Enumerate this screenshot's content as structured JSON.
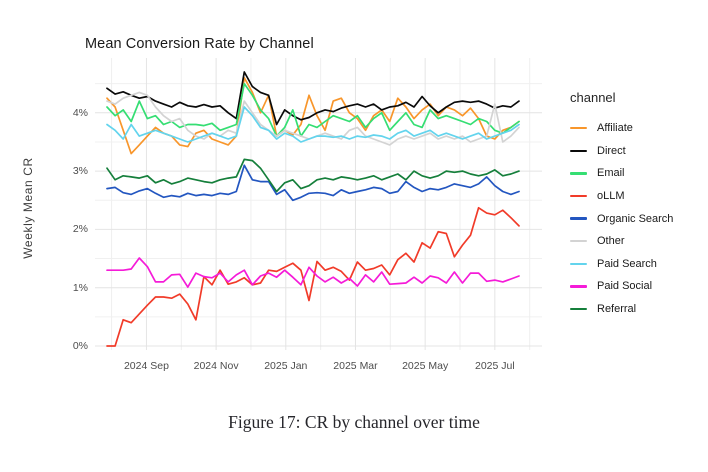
{
  "figure": {
    "caption": "Figure 17: CR by channel over time"
  },
  "chart_data": {
    "type": "line",
    "title": "Mean Conversion Rate by Channel",
    "xlabel": "",
    "ylabel": "Weekly Mean CR",
    "x_unit": "week",
    "x_range_weeks": 52,
    "x_tick_labels": [
      "2024 Sep",
      "2024 Nov",
      "2025 Jan",
      "2025 Mar",
      "2025 May",
      "2025 Jul"
    ],
    "y_tick_labels": [
      "0%",
      "1%",
      "2%",
      "3%",
      "4%"
    ],
    "y_tick_values": [
      0,
      1,
      2,
      3,
      4
    ],
    "ylim": [
      0,
      4.94
    ],
    "grid": true,
    "legend_title": "channel",
    "legend_position": "right",
    "series": [
      {
        "name": "Affiliate",
        "color": "#F8962B",
        "values": [
          4.25,
          4.1,
          3.7,
          3.3,
          3.45,
          3.6,
          3.75,
          3.65,
          3.6,
          3.45,
          3.42,
          3.65,
          3.7,
          3.55,
          3.5,
          3.45,
          3.6,
          4.6,
          4.35,
          4.0,
          4.3,
          3.6,
          3.7,
          3.62,
          3.8,
          4.3,
          3.95,
          3.7,
          4.2,
          4.25,
          4.0,
          3.9,
          3.7,
          3.95,
          4.05,
          3.85,
          4.25,
          4.1,
          3.9,
          4.05,
          4.15,
          3.95,
          4.1,
          4.05,
          3.95,
          4.08,
          3.9,
          3.6,
          3.55,
          3.7,
          3.75,
          3.85
        ]
      },
      {
        "name": "Direct",
        "color": "#0A0A0A",
        "values": [
          4.42,
          4.32,
          4.36,
          4.3,
          4.25,
          4.28,
          4.2,
          4.15,
          4.1,
          4.18,
          4.12,
          4.1,
          4.14,
          4.1,
          4.12,
          4.0,
          3.9,
          4.7,
          4.45,
          4.35,
          4.3,
          3.8,
          4.05,
          3.95,
          3.88,
          3.92,
          4.0,
          4.05,
          4.02,
          4.08,
          4.12,
          4.15,
          4.1,
          4.15,
          4.05,
          4.1,
          4.12,
          4.18,
          4.1,
          4.28,
          4.12,
          4.0,
          4.1,
          4.18,
          4.2,
          4.18,
          4.2,
          4.15,
          4.08,
          4.12,
          4.1,
          4.2
        ]
      },
      {
        "name": "Email",
        "color": "#35DE73",
        "values": [
          4.1,
          3.95,
          4.05,
          3.85,
          4.2,
          3.9,
          3.95,
          3.8,
          3.85,
          3.75,
          3.8,
          3.8,
          3.78,
          3.82,
          3.7,
          3.75,
          3.8,
          4.5,
          4.3,
          4.05,
          3.9,
          3.6,
          3.75,
          4.05,
          3.6,
          3.8,
          3.75,
          3.85,
          3.95,
          3.9,
          3.85,
          3.95,
          3.75,
          3.9,
          4.0,
          3.7,
          3.85,
          4.0,
          3.8,
          3.75,
          4.05,
          3.9,
          3.95,
          3.9,
          3.85,
          3.8,
          3.9,
          3.85,
          3.7,
          3.65,
          3.75,
          3.85
        ]
      },
      {
        "name": "oLLM",
        "color": "#F13B29",
        "values": [
          0.0,
          0.0,
          0.45,
          0.4,
          0.55,
          0.7,
          0.84,
          0.84,
          0.82,
          0.89,
          0.72,
          0.45,
          1.19,
          1.05,
          1.3,
          1.06,
          1.1,
          1.17,
          1.05,
          1.08,
          1.3,
          1.28,
          1.35,
          1.42,
          1.3,
          0.78,
          1.45,
          1.3,
          1.35,
          1.28,
          1.13,
          1.44,
          1.3,
          1.33,
          1.39,
          1.22,
          1.48,
          1.59,
          1.44,
          1.77,
          1.68,
          1.96,
          1.93,
          1.53,
          1.73,
          1.9,
          2.37,
          2.28,
          2.25,
          2.33,
          2.2,
          2.06
        ]
      },
      {
        "name": "Organic Search",
        "color": "#2356C0",
        "values": [
          2.7,
          2.72,
          2.63,
          2.6,
          2.66,
          2.7,
          2.62,
          2.55,
          2.58,
          2.56,
          2.62,
          2.58,
          2.6,
          2.58,
          2.62,
          2.6,
          2.65,
          3.1,
          2.85,
          2.82,
          2.82,
          2.6,
          2.68,
          2.5,
          2.55,
          2.62,
          2.63,
          2.62,
          2.58,
          2.68,
          2.62,
          2.65,
          2.68,
          2.72,
          2.7,
          2.62,
          2.65,
          2.82,
          2.72,
          2.65,
          2.7,
          2.68,
          2.72,
          2.78,
          2.75,
          2.72,
          2.78,
          2.9,
          2.75,
          2.65,
          2.6,
          2.65
        ]
      },
      {
        "name": "Other",
        "color": "#D3D3D3",
        "values": [
          4.2,
          4.15,
          4.25,
          4.3,
          4.35,
          4.3,
          4.1,
          3.95,
          3.85,
          3.9,
          3.7,
          3.6,
          3.55,
          3.65,
          3.6,
          3.7,
          3.65,
          4.2,
          4.0,
          3.8,
          3.7,
          3.6,
          3.7,
          3.65,
          3.6,
          3.55,
          3.6,
          3.65,
          3.6,
          3.55,
          3.7,
          3.75,
          3.6,
          3.55,
          3.5,
          3.45,
          3.55,
          3.6,
          3.55,
          3.6,
          3.65,
          3.55,
          3.6,
          3.55,
          3.6,
          3.5,
          3.55,
          3.6,
          4.15,
          3.5,
          3.6,
          3.75
        ]
      },
      {
        "name": "Paid Search",
        "color": "#63D4ED",
        "values": [
          3.8,
          3.7,
          3.55,
          3.8,
          3.6,
          3.65,
          3.7,
          3.65,
          3.6,
          3.55,
          3.5,
          3.55,
          3.6,
          3.65,
          3.6,
          3.55,
          3.6,
          4.1,
          3.95,
          3.75,
          3.7,
          3.55,
          3.65,
          3.6,
          3.5,
          3.55,
          3.6,
          3.6,
          3.58,
          3.6,
          3.55,
          3.6,
          3.58,
          3.62,
          3.6,
          3.55,
          3.65,
          3.7,
          3.6,
          3.65,
          3.7,
          3.6,
          3.65,
          3.6,
          3.55,
          3.6,
          3.65,
          3.55,
          3.6,
          3.65,
          3.7,
          3.8
        ]
      },
      {
        "name": "Paid Social",
        "color": "#F51BD8",
        "values": [
          1.3,
          1.3,
          1.3,
          1.32,
          1.51,
          1.36,
          1.1,
          1.1,
          1.22,
          1.23,
          1.01,
          1.25,
          1.19,
          1.17,
          1.25,
          1.1,
          1.22,
          1.3,
          1.05,
          1.2,
          1.25,
          1.18,
          1.3,
          1.18,
          1.05,
          1.35,
          1.2,
          1.1,
          1.18,
          1.08,
          1.16,
          1.03,
          1.22,
          1.1,
          1.27,
          1.06,
          1.07,
          1.08,
          1.18,
          1.08,
          1.2,
          1.17,
          1.08,
          1.27,
          1.08,
          1.25,
          1.25,
          1.11,
          1.13,
          1.1,
          1.15,
          1.2
        ]
      },
      {
        "name": "Referral",
        "color": "#157F3B",
        "values": [
          3.05,
          2.85,
          2.92,
          2.9,
          2.88,
          2.92,
          2.8,
          2.85,
          2.78,
          2.82,
          2.88,
          2.85,
          2.82,
          2.8,
          2.85,
          2.88,
          2.9,
          3.2,
          3.18,
          3.05,
          2.85,
          2.65,
          2.8,
          2.85,
          2.7,
          2.75,
          2.85,
          2.88,
          2.85,
          2.9,
          2.88,
          2.85,
          2.88,
          2.92,
          2.85,
          2.9,
          2.95,
          2.85,
          3.0,
          2.92,
          2.88,
          2.92,
          3.0,
          2.98,
          3.0,
          2.95,
          2.92,
          2.95,
          3.02,
          2.92,
          2.95,
          3.0
        ]
      }
    ]
  }
}
